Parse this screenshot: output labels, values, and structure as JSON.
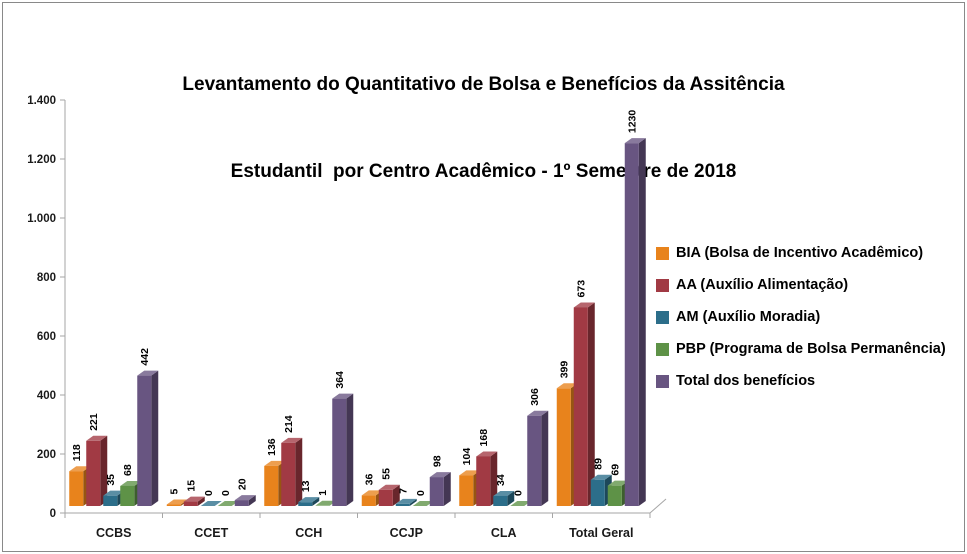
{
  "title": {
    "line1": "Levantamento do Quantitativo de Bolsa e Benefícios da Assitência",
    "line2": "Estudantil  por Centro Acadêmico - 1º Semestre de 2018"
  },
  "chart_data": {
    "type": "bar",
    "style": "3d-clustered-column",
    "title": "Levantamento do Quantitativo de Bolsa e Benefícios da Assitência Estudantil por Centro Acadêmico - 1º Semestre de 2018",
    "categories": [
      "CCBS",
      "CCET",
      "CCH",
      "CCJP",
      "CLA",
      "Total Geral"
    ],
    "series": [
      {
        "name": "BIA (Bolsa de Incentivo Acadêmico)",
        "color": "#E8831C",
        "values": [
          118,
          5,
          136,
          36,
          104,
          399
        ]
      },
      {
        "name": "AA (Auxílio Alimentação)",
        "color": "#A13A44",
        "values": [
          221,
          15,
          214,
          55,
          168,
          673
        ]
      },
      {
        "name": "AM (Auxílio Moradia)",
        "color": "#2C6E8A",
        "values": [
          35,
          0,
          13,
          7,
          34,
          89
        ]
      },
      {
        "name": "PBP (Programa de Bolsa Permanência)",
        "color": "#5E9247",
        "values": [
          68,
          0,
          1,
          0,
          0,
          69
        ]
      },
      {
        "name": "Total dos benefícios",
        "color": "#685581",
        "values": [
          442,
          20,
          364,
          98,
          306,
          1230
        ]
      }
    ],
    "xlabel": "",
    "ylabel": "",
    "ylim": [
      0,
      1400
    ],
    "ytick_step": 200,
    "ytick_labels": [
      "0",
      "200",
      "400",
      "600",
      "800",
      "1.000",
      "1.200",
      "1.400"
    ],
    "grid": false,
    "data_labels": true,
    "data_label_rotation": -90,
    "legend_position": "right",
    "axis_color": "#A6A6A6"
  }
}
